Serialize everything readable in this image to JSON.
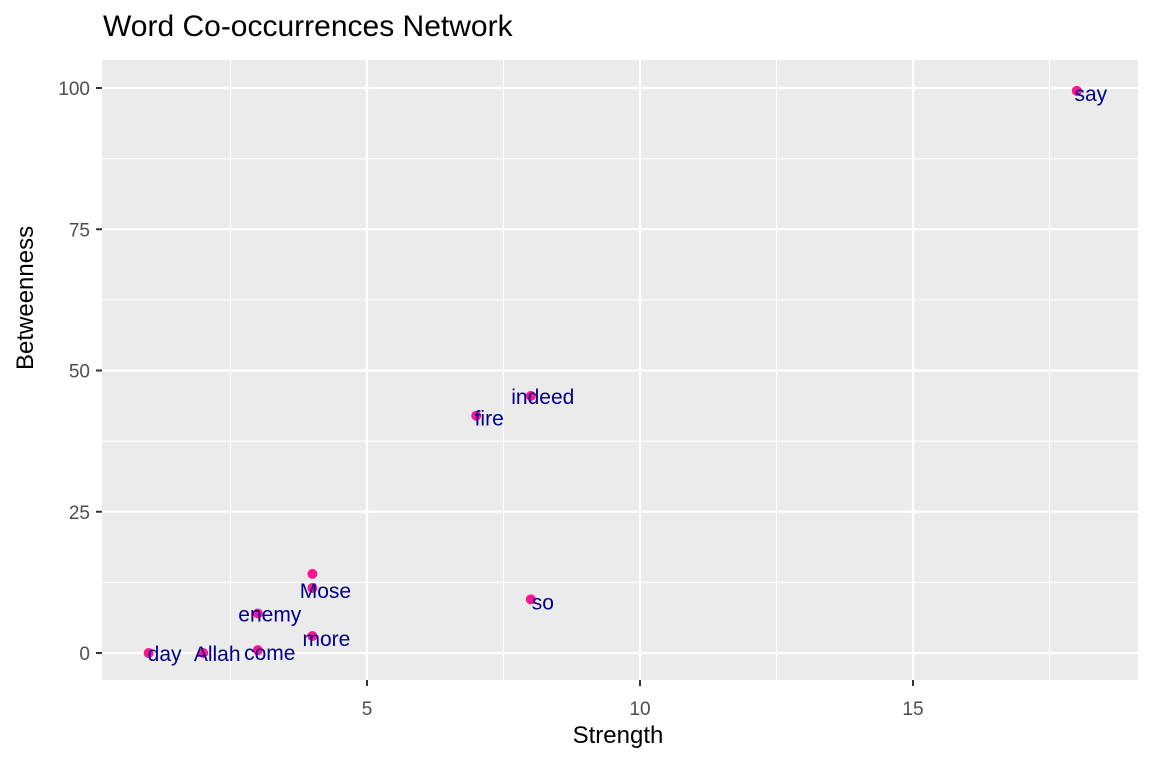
{
  "chart_data": {
    "type": "scatter",
    "title": "Word Co-occurrences Network",
    "xlabel": "Strength",
    "ylabel": "Betweenness",
    "xlim": [
      0.55,
      19.0
    ],
    "ylim": [
      -5,
      105
    ],
    "x_ticks": [
      5,
      10,
      15
    ],
    "y_ticks": [
      0,
      25,
      50,
      75,
      100
    ],
    "grid": true,
    "point_color": "#ff1493",
    "label_color": "#00008b",
    "points": [
      {
        "label": "day",
        "x": 1,
        "y": 0
      },
      {
        "label": "Allah",
        "x": 2,
        "y": 0
      },
      {
        "label": "come",
        "x": 3,
        "y": 0.5
      },
      {
        "label": "enemy",
        "x": 3,
        "y": 7
      },
      {
        "label": "",
        "x": 4,
        "y": 14
      },
      {
        "label": "Mose",
        "x": 4,
        "y": 11.5
      },
      {
        "label": "more",
        "x": 4,
        "y": 3
      },
      {
        "label": "so",
        "x": 8,
        "y": 9.5
      },
      {
        "label": "fire",
        "x": 7,
        "y": 42
      },
      {
        "label": "indeed",
        "x": 8,
        "y": 45.5
      },
      {
        "label": "say",
        "x": 18,
        "y": 99.5
      }
    ]
  }
}
